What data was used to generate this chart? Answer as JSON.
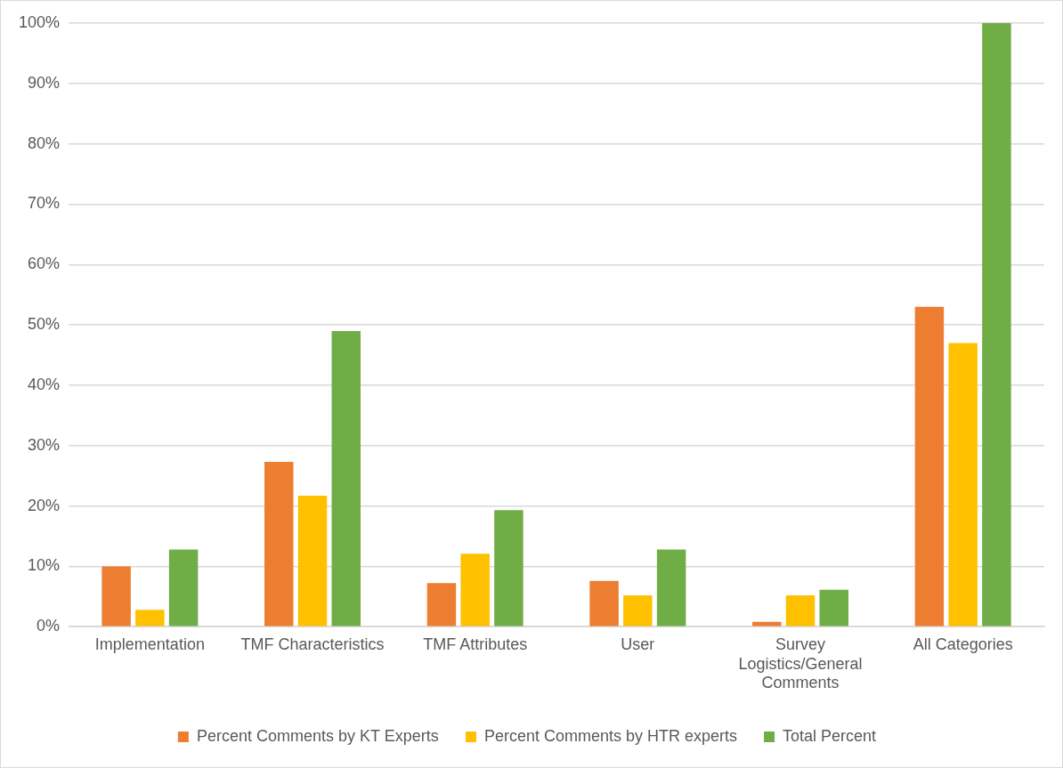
{
  "chart_data": {
    "type": "bar",
    "categories": [
      "Implementation",
      "TMF Characteristics",
      "TMF Attributes",
      "User",
      "Survey Logistics/General Comments",
      "All Categories"
    ],
    "series": [
      {
        "name": "Percent Comments by KT Experts",
        "color": "#ed7d31",
        "values": [
          10,
          27.3,
          7.2,
          7.6,
          0.8,
          53
        ]
      },
      {
        "name": "Percent Comments by HTR experts",
        "color": "#ffc000",
        "values": [
          2.8,
          21.7,
          12.1,
          5.2,
          5.2,
          47
        ]
      },
      {
        "name": "Total Percent",
        "color": "#70ad47",
        "values": [
          12.8,
          49,
          19.3,
          12.8,
          6.1,
          100
        ]
      }
    ],
    "ylim": [
      0,
      100
    ],
    "yticks": [
      {
        "value": 0,
        "label": "0%"
      },
      {
        "value": 10,
        "label": "10%"
      },
      {
        "value": 20,
        "label": "20%"
      },
      {
        "value": 30,
        "label": "30%"
      },
      {
        "value": 40,
        "label": "40%"
      },
      {
        "value": 50,
        "label": "50%"
      },
      {
        "value": 60,
        "label": "60%"
      },
      {
        "value": 70,
        "label": "70%"
      },
      {
        "value": 80,
        "label": "80%"
      },
      {
        "value": 90,
        "label": "90%"
      },
      {
        "value": 100,
        "label": "100%"
      }
    ],
    "grid": "y",
    "legend": "bottom"
  }
}
